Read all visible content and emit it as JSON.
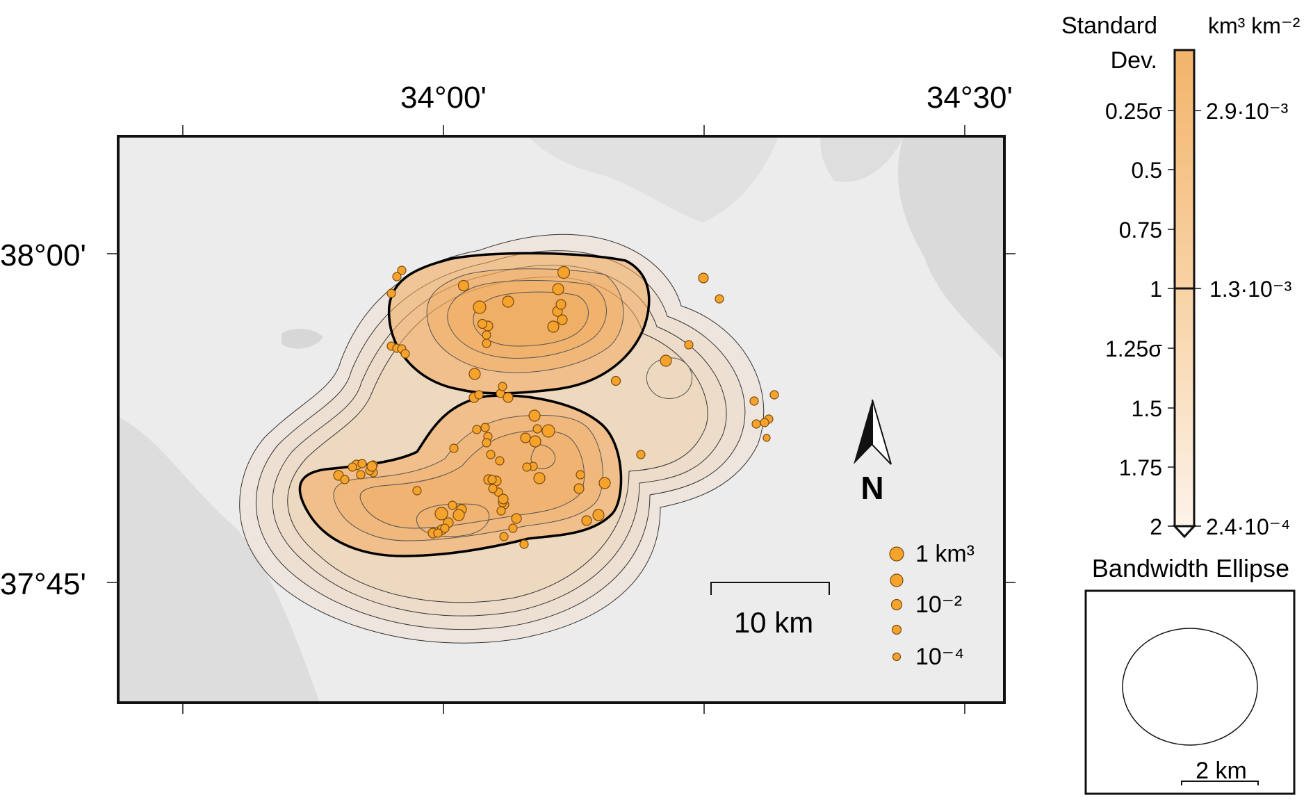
{
  "map": {
    "lon_labels": [
      "34°00'",
      "34°30'"
    ],
    "lat_labels": [
      "38°00'",
      "37°45'"
    ],
    "north_label": "N",
    "scale_bar_label": "10 km"
  },
  "size_legend": {
    "labels": [
      "1 km³",
      "",
      "10⁻²",
      "",
      "10⁻⁴"
    ],
    "values_km3": [
      1,
      0.1,
      0.01,
      0.001,
      0.0001
    ]
  },
  "colorbar": {
    "left_title_1": "Standard",
    "left_title_2": "Dev.",
    "right_title": "km³ km⁻²",
    "left_ticks": [
      "0.25σ",
      "0.5",
      "0.75",
      "1",
      "1.25σ",
      "1.5",
      "1.75",
      "2"
    ],
    "right_ticks": [
      "2.9·10⁻³",
      "1.3·10⁻³",
      "2.4·10⁻⁴"
    ],
    "color_high": "#f3b46b",
    "color_low": "#fcf4ec"
  },
  "bandwidth": {
    "title": "Bandwidth Ellipse",
    "scale_label": "2 km"
  },
  "colors": {
    "vent_fill": "#f5a32a",
    "vent_stroke": "#7a4a10",
    "density_fill": "#f4b978",
    "frame": "#111111"
  }
}
